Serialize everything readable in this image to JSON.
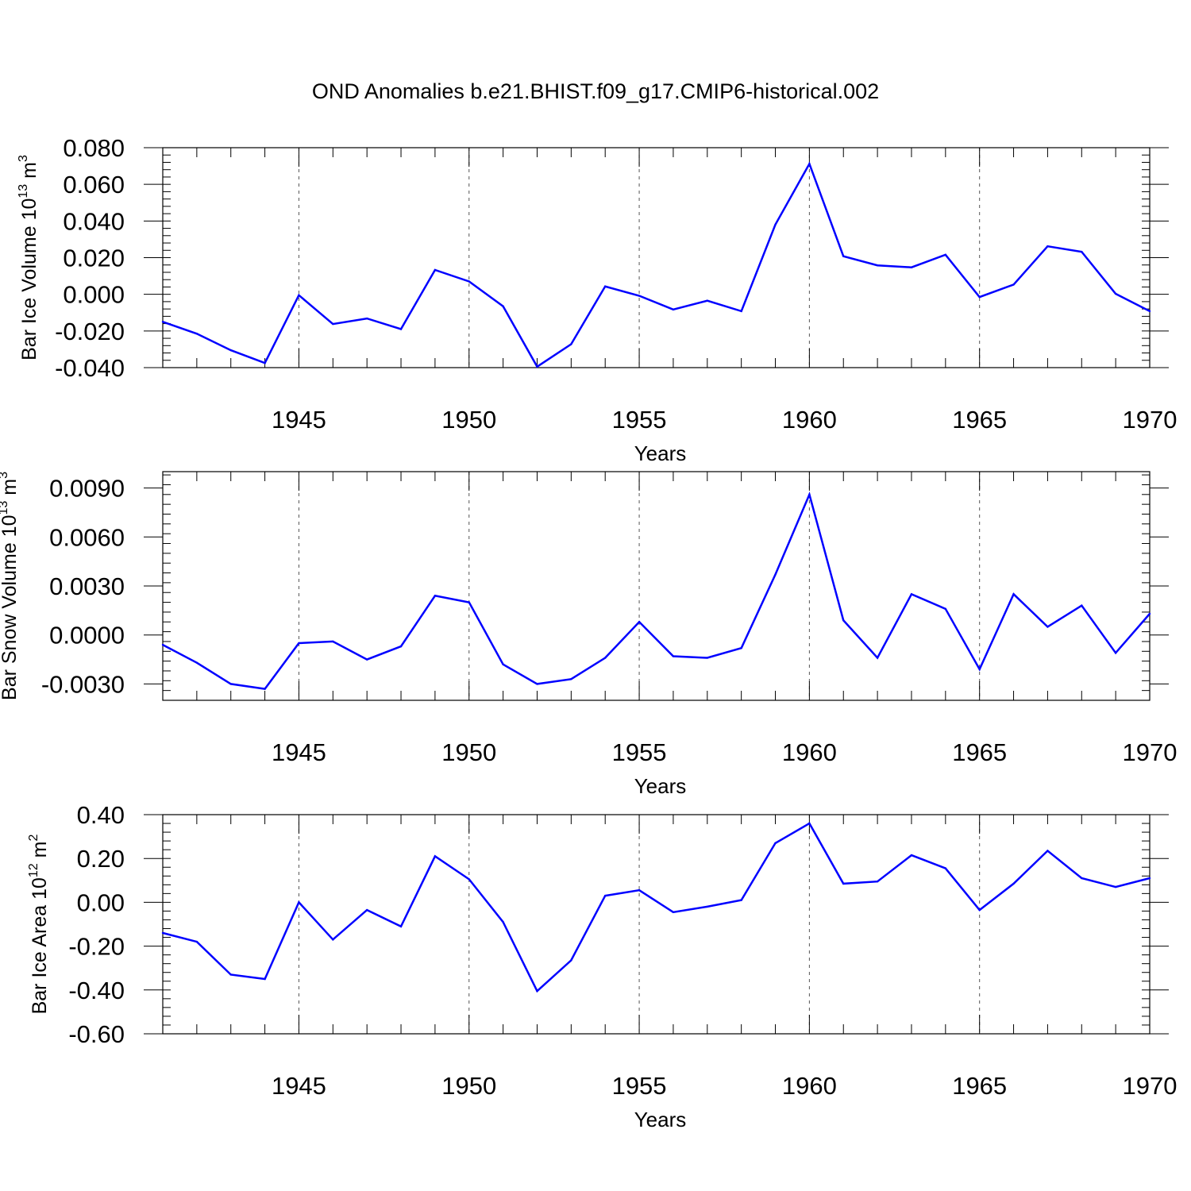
{
  "title": "OND Anomalies b.e21.BHIST.f09_g17.CMIP6-historical.002",
  "line_color": "#0000ff",
  "gridline_style": "dashed",
  "chart_data": [
    {
      "type": "line",
      "title": "OND Anomalies b.e21.BHIST.f09_g17.CMIP6-historical.002",
      "xlabel": "Years",
      "ylabel": {
        "base": "Bar Ice Volume 10",
        "exp": "13",
        "unit": " m",
        "unit_exp": "3"
      },
      "xlim": [
        1941,
        1970
      ],
      "ylim": [
        -0.04,
        0.08
      ],
      "x_ticks": [
        1945,
        1950,
        1955,
        1960,
        1965,
        1970
      ],
      "x_tick_labels": [
        "1945",
        "1950",
        "1955",
        "1960",
        "1965",
        "1970"
      ],
      "y_ticks": [
        -0.04,
        -0.02,
        0.0,
        0.02,
        0.04,
        0.06,
        0.08
      ],
      "y_tick_labels": [
        "-0.040",
        "-0.020",
        "0.000",
        "0.020",
        "0.040",
        "0.060",
        "0.080"
      ],
      "grid": "vertical dashed at x ticks",
      "series": [
        {
          "x": [
            1941,
            1942,
            1943,
            1944,
            1945,
            1946,
            1947,
            1948,
            1949,
            1950,
            1951,
            1952,
            1953,
            1954,
            1955,
            1956,
            1957,
            1958,
            1959,
            1960,
            1961,
            1962,
            1963,
            1964,
            1965,
            1966,
            1967,
            1968,
            1969,
            1970
          ],
          "values": [
            -0.015,
            -0.0215,
            -0.0305,
            -0.0375,
            -0.0005,
            -0.0162,
            -0.0132,
            -0.019,
            0.0133,
            0.007,
            -0.0065,
            -0.0395,
            -0.0272,
            0.0043,
            -0.0008,
            -0.0083,
            -0.0035,
            -0.0092,
            0.038,
            0.0712,
            0.0208,
            0.0158,
            0.0147,
            0.0216,
            -0.0015,
            0.0053,
            0.0262,
            0.0232,
            0.0003,
            -0.0092
          ]
        }
      ]
    },
    {
      "type": "line",
      "xlabel": "Years",
      "ylabel": {
        "base": "Bar Snow Volume 10",
        "exp": "13",
        "unit": " m",
        "unit_exp": "3"
      },
      "xlim": [
        1941,
        1970
      ],
      "ylim": [
        -0.004,
        0.01
      ],
      "x_ticks": [
        1945,
        1950,
        1955,
        1960,
        1965,
        1970
      ],
      "x_tick_labels": [
        "1945",
        "1950",
        "1955",
        "1960",
        "1965",
        "1970"
      ],
      "y_ticks": [
        -0.003,
        0.0,
        0.003,
        0.006,
        0.009
      ],
      "y_tick_labels": [
        "-0.0030",
        "0.0000",
        "0.0030",
        "0.0060",
        "0.0090"
      ],
      "grid": "vertical dashed at x ticks",
      "series": [
        {
          "x": [
            1941,
            1942,
            1943,
            1944,
            1945,
            1946,
            1947,
            1948,
            1949,
            1950,
            1951,
            1952,
            1953,
            1954,
            1955,
            1956,
            1957,
            1958,
            1959,
            1960,
            1961,
            1962,
            1963,
            1964,
            1965,
            1966,
            1967,
            1968,
            1969,
            1970
          ],
          "values": [
            -0.0006,
            -0.0017,
            -0.003,
            -0.0033,
            -0.0005,
            -0.0004,
            -0.0015,
            -0.0007,
            0.0024,
            0.002,
            -0.0018,
            -0.003,
            -0.0027,
            -0.0014,
            0.0008,
            -0.0013,
            -0.0014,
            -0.0008,
            0.0037,
            0.0086,
            0.0009,
            -0.0014,
            0.0025,
            0.0016,
            -0.0021,
            0.0025,
            0.0005,
            0.0018,
            -0.0011,
            0.0013
          ]
        }
      ]
    },
    {
      "type": "line",
      "xlabel": "Years",
      "ylabel": {
        "base": "Bar Ice Area 10",
        "exp": "12",
        "unit": " m",
        "unit_exp": "2"
      },
      "xlim": [
        1941,
        1970
      ],
      "ylim": [
        -0.6,
        0.4
      ],
      "x_ticks": [
        1945,
        1950,
        1955,
        1960,
        1965,
        1970
      ],
      "x_tick_labels": [
        "1945",
        "1950",
        "1955",
        "1960",
        "1965",
        "1970"
      ],
      "y_ticks": [
        -0.6,
        -0.4,
        -0.2,
        0.0,
        0.2,
        0.4
      ],
      "y_tick_labels": [
        "-0.60",
        "-0.40",
        "-0.20",
        "0.00",
        "0.20",
        "0.40"
      ],
      "grid": "vertical dashed at x ticks",
      "series": [
        {
          "x": [
            1941,
            1942,
            1943,
            1944,
            1945,
            1946,
            1947,
            1948,
            1949,
            1950,
            1951,
            1952,
            1953,
            1954,
            1955,
            1956,
            1957,
            1958,
            1959,
            1960,
            1961,
            1962,
            1963,
            1964,
            1965,
            1966,
            1967,
            1968,
            1969,
            1970
          ],
          "values": [
            -0.14,
            -0.18,
            -0.33,
            -0.35,
            0.0,
            -0.17,
            -0.035,
            -0.11,
            0.21,
            0.105,
            -0.09,
            -0.405,
            -0.265,
            0.03,
            0.055,
            -0.045,
            -0.02,
            0.01,
            0.27,
            0.36,
            0.085,
            0.095,
            0.215,
            0.155,
            -0.035,
            0.085,
            0.235,
            0.11,
            0.07,
            0.11
          ]
        }
      ]
    }
  ]
}
